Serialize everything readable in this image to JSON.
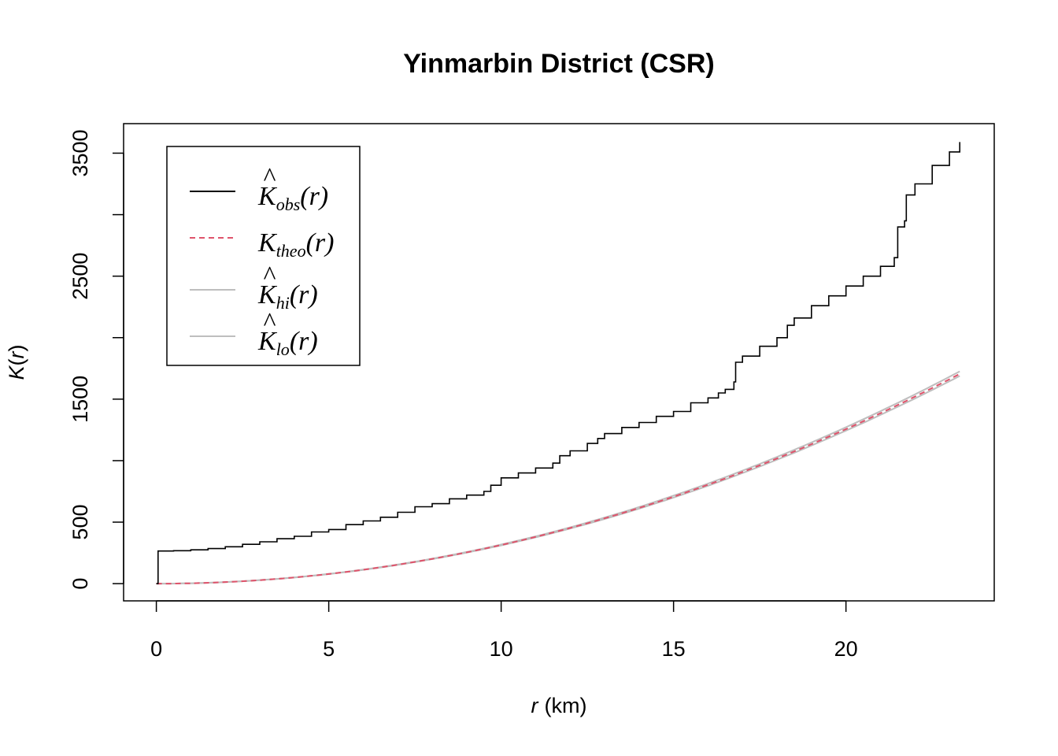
{
  "chart_data": {
    "type": "line",
    "title": "Yinmarbin District (CSR)",
    "xlabel": {
      "var": "r",
      "unit": "(km)"
    },
    "ylabel": {
      "var": "K",
      "paren_open": "(",
      "arg": "r",
      "paren_close": ")"
    },
    "xlim": [
      -0.95,
      24.3
    ],
    "ylim": [
      -140,
      3740
    ],
    "x_ticks": [
      0,
      5,
      10,
      15,
      20
    ],
    "y_ticks": [
      0,
      500,
      1500,
      2500,
      3500
    ],
    "y_ticks_minor": [
      1000,
      2000,
      3000
    ],
    "legend_position": "top-left",
    "series": [
      {
        "key": "obs",
        "legend_hat": "^",
        "legend_main": "K",
        "legend_sub": "obs",
        "legend_arg": "(r)",
        "color": "#000000",
        "dash": "solid",
        "style": "step",
        "x": [
          0,
          0.05,
          0.5,
          1.0,
          1.5,
          2.0,
          2.5,
          3.0,
          3.5,
          4.0,
          4.5,
          5.0,
          5.5,
          6.0,
          6.5,
          7.0,
          7.5,
          8.0,
          8.5,
          9.0,
          9.5,
          9.7,
          10.0,
          10.5,
          11.0,
          11.5,
          11.7,
          12.0,
          12.5,
          12.8,
          13.0,
          13.5,
          14.0,
          14.5,
          15.0,
          15.5,
          16.0,
          16.3,
          16.5,
          16.75,
          16.8,
          17.0,
          17.5,
          18.0,
          18.3,
          18.5,
          19.0,
          19.5,
          20.0,
          20.5,
          21.0,
          21.4,
          21.5,
          21.7,
          21.75,
          22.0,
          22.5,
          23.0,
          23.3
        ],
        "y": [
          0,
          265,
          268,
          275,
          285,
          300,
          320,
          340,
          365,
          385,
          420,
          440,
          480,
          510,
          540,
          580,
          625,
          650,
          690,
          720,
          750,
          800,
          860,
          900,
          940,
          980,
          1040,
          1080,
          1140,
          1180,
          1220,
          1270,
          1310,
          1360,
          1400,
          1470,
          1510,
          1550,
          1580,
          1640,
          1800,
          1850,
          1930,
          2000,
          2100,
          2160,
          2260,
          2340,
          2420,
          2500,
          2580,
          2650,
          2900,
          2950,
          3160,
          3250,
          3400,
          3510,
          3590
        ]
      },
      {
        "key": "theo",
        "legend_hat": "",
        "legend_main": "K",
        "legend_sub": "theo",
        "legend_arg": "(r)",
        "color": "#DF536B",
        "dash": "dashed",
        "formula": "pi*r^2",
        "x_range": [
          0,
          23.3
        ]
      },
      {
        "key": "hi",
        "legend_hat": "^",
        "legend_main": "K",
        "legend_sub": "hi",
        "legend_arg": "(r)",
        "color": "#BEBEBE",
        "dash": "solid",
        "formula": "pi*r^2*1.012",
        "x_range": [
          0,
          23.3
        ]
      },
      {
        "key": "lo",
        "legend_hat": "^",
        "legend_main": "K",
        "legend_sub": "lo",
        "legend_arg": "(r)",
        "color": "#BEBEBE",
        "dash": "solid",
        "formula": "pi*r^2*0.99",
        "x_range": [
          0,
          23.3
        ]
      }
    ]
  }
}
